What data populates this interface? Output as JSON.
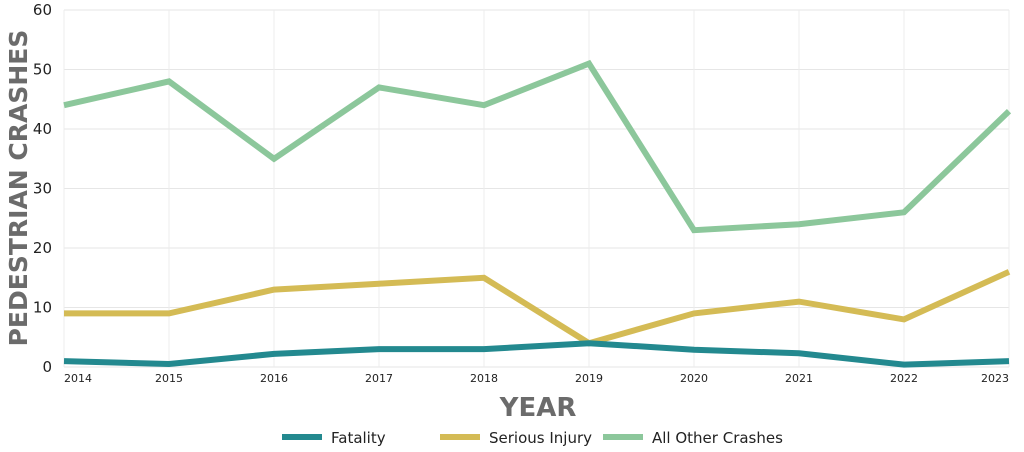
{
  "chart_data": {
    "type": "line",
    "title": "",
    "xlabel": "YEAR",
    "ylabel": "PEDESTRIAN CRASHES",
    "x": [
      "2014",
      "2015",
      "2016",
      "2017",
      "2018",
      "2019",
      "2020",
      "2021",
      "2022",
      "2023"
    ],
    "ylim": [
      0,
      60
    ],
    "yticks": [
      "0",
      "10",
      "20",
      "30",
      "40",
      "50",
      "60"
    ],
    "grid": true,
    "legend_position": "bottom",
    "series": [
      {
        "name": "Fatality",
        "color": "#23898f",
        "values": [
          1,
          0.5,
          2.2,
          3,
          3,
          4,
          2.9,
          2.3,
          0.4,
          1
        ]
      },
      {
        "name": "Serious Injury",
        "color": "#d4bb55",
        "values": [
          9,
          9,
          13,
          14,
          15,
          4,
          9,
          11,
          8,
          16
        ]
      },
      {
        "name": "All Other Crashes",
        "color": "#8cc79b",
        "values": [
          44,
          48,
          35,
          47,
          44,
          51,
          23,
          24,
          26,
          43
        ]
      }
    ]
  }
}
